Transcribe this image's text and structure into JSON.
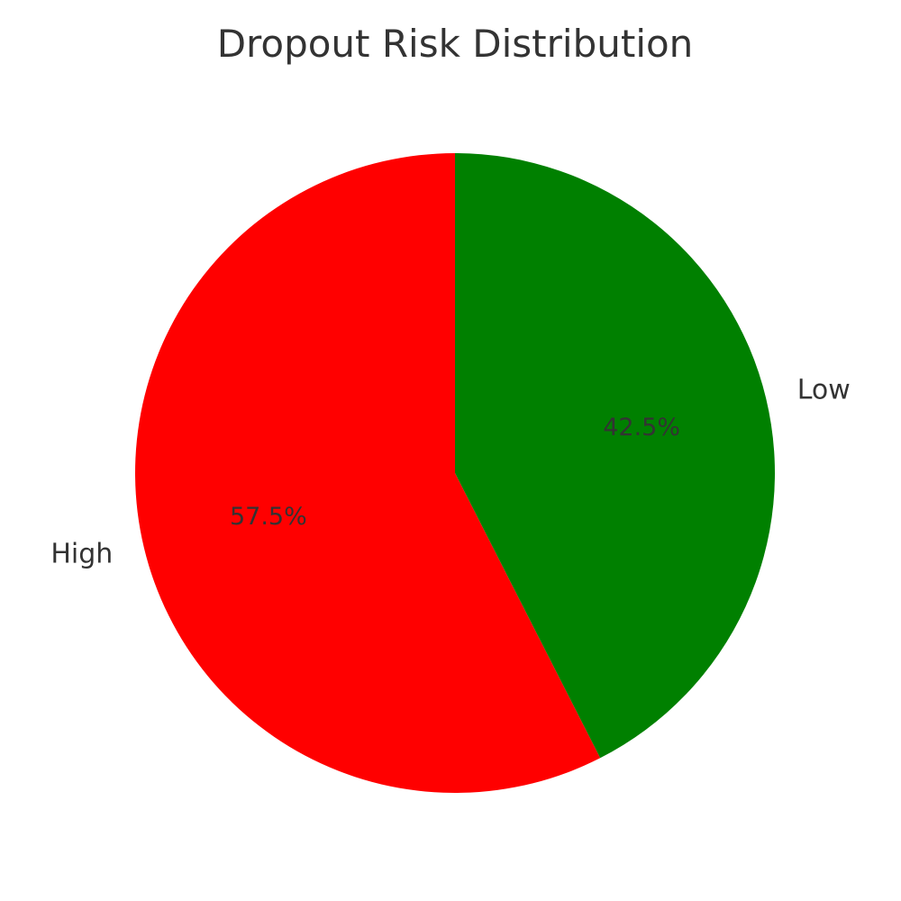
{
  "chart_data": {
    "type": "pie",
    "title": "Dropout Risk Distribution",
    "categories": [
      "High",
      "Low"
    ],
    "values": [
      57.5,
      42.5
    ],
    "value_labels": [
      "57.5%",
      "42.5%"
    ],
    "colors": [
      "#ff0000",
      "#008000"
    ],
    "start_angle_deg": 90,
    "direction": "counterclockwise",
    "legend": "none"
  }
}
